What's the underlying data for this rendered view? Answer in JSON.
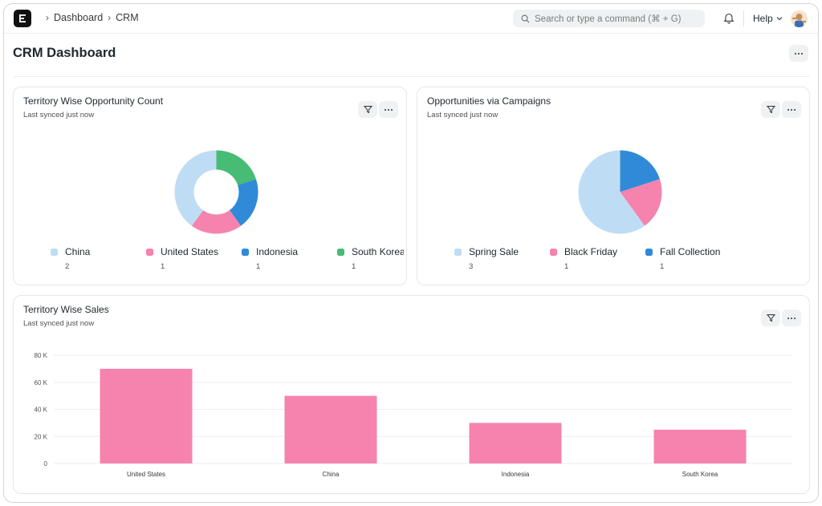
{
  "navbar": {
    "breadcrumbs": [
      "Dashboard",
      "CRM"
    ],
    "search_placeholder": "Search or type a command (⌘ + G)",
    "help_label": "Help"
  },
  "page": {
    "title": "CRM Dashboard"
  },
  "cards": {
    "territory_count": {
      "title": "Territory Wise Opportunity Count",
      "subtitle": "Last synced just now",
      "legend": [
        {
          "label": "China",
          "value": "2",
          "color": "#bfdcf5"
        },
        {
          "label": "United States",
          "value": "1",
          "color": "#f683ae"
        },
        {
          "label": "Indonesia",
          "value": "1",
          "color": "#318ad8"
        },
        {
          "label": "South Korea",
          "value": "1",
          "color": "#48bb74"
        }
      ]
    },
    "campaigns": {
      "title": "Opportunities via Campaigns",
      "subtitle": "Last synced just now",
      "legend": [
        {
          "label": "Spring Sale",
          "value": "3",
          "color": "#bfdcf5"
        },
        {
          "label": "Black Friday",
          "value": "1",
          "color": "#f683ae"
        },
        {
          "label": "Fall Collection",
          "value": "1",
          "color": "#318ad8"
        }
      ]
    },
    "territory_sales": {
      "title": "Territory Wise Sales",
      "subtitle": "Last synced just now"
    }
  },
  "chart_data": [
    {
      "type": "pie",
      "variant": "donut",
      "title": "Territory Wise Opportunity Count",
      "categories": [
        "China",
        "United States",
        "Indonesia",
        "South Korea"
      ],
      "values": [
        2,
        1,
        1,
        1
      ],
      "colors": [
        "#bfdcf5",
        "#f683ae",
        "#318ad8",
        "#48bb74"
      ]
    },
    {
      "type": "pie",
      "title": "Opportunities via Campaigns",
      "categories": [
        "Spring Sale",
        "Black Friday",
        "Fall Collection"
      ],
      "values": [
        3,
        1,
        1
      ],
      "colors": [
        "#bfdcf5",
        "#f683ae",
        "#318ad8"
      ]
    },
    {
      "type": "bar",
      "title": "Territory Wise Sales",
      "categories": [
        "United States",
        "China",
        "Indonesia",
        "South Korea"
      ],
      "values": [
        70000,
        50000,
        30000,
        25000
      ],
      "yticks": [
        0,
        20000,
        40000,
        60000,
        80000
      ],
      "ytick_labels": [
        "0",
        "20 K",
        "40 K",
        "60 K",
        "80 K"
      ],
      "ylim": [
        0,
        80000
      ],
      "color": "#f683ae",
      "grid": true
    }
  ]
}
